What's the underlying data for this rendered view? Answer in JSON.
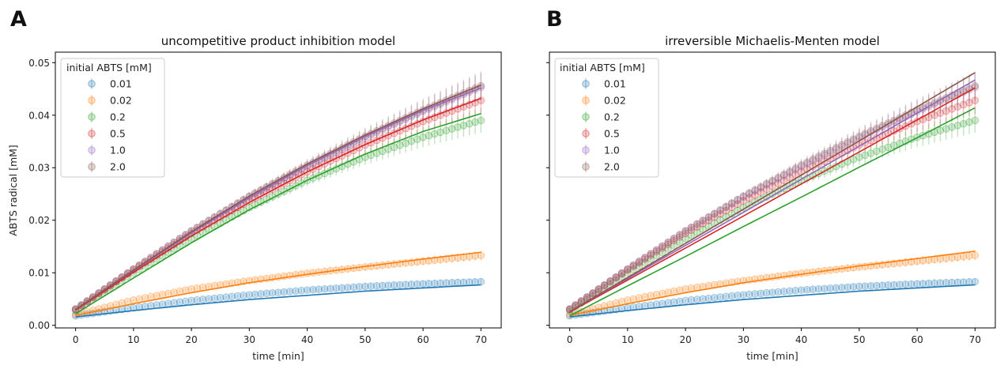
{
  "chart_data": [
    {
      "type": "scatter",
      "panel_label": "A",
      "title": "uncompetitive product inhibition model",
      "xlabel": "time [min]",
      "ylabel": "ABTS radical [mM]",
      "xlim": [
        -3.5,
        73.5
      ],
      "ylim": [
        -0.0005,
        0.052
      ],
      "xticks": [
        0,
        10,
        20,
        30,
        40,
        50,
        60,
        70
      ],
      "yticks": [
        0.0,
        0.01,
        0.02,
        0.03,
        0.04,
        0.05
      ],
      "ytick_labels": [
        "0.00",
        "0.01",
        "0.02",
        "0.03",
        "0.04",
        "0.05"
      ],
      "grid": false,
      "legend": {
        "title": "initial ABTS [mM]",
        "placement": "top-left"
      },
      "series": [
        {
          "name": "0.01",
          "color": "#1f77b4",
          "data": {
            "x": [
              0,
              10,
              20,
              30,
              40,
              50,
              60,
              70
            ],
            "y": [
              0.0018,
              0.0033,
              0.0047,
              0.0058,
              0.0067,
              0.0074,
              0.0079,
              0.0083
            ]
          },
          "fit": {
            "x": [
              0,
              10,
              20,
              30,
              40,
              50,
              60,
              70
            ],
            "y": [
              0.0016,
              0.0028,
              0.0039,
              0.0049,
              0.0057,
              0.0065,
              0.0071,
              0.0077
            ]
          }
        },
        {
          "name": "0.02",
          "color": "#ff7f0e",
          "data": {
            "x": [
              0,
              10,
              20,
              30,
              40,
              50,
              60,
              70
            ],
            "y": [
              0.002,
              0.0048,
              0.0069,
              0.0085,
              0.0099,
              0.0111,
              0.0122,
              0.0133
            ]
          },
          "fit": {
            "x": [
              0,
              10,
              20,
              30,
              40,
              50,
              60,
              70
            ],
            "y": [
              0.0019,
              0.0041,
              0.0062,
              0.0081,
              0.0097,
              0.0112,
              0.0126,
              0.0139
            ]
          }
        },
        {
          "name": "0.2",
          "color": "#2ca02c",
          "data": {
            "x": [
              0,
              10,
              20,
              30,
              40,
              50,
              60,
              70
            ],
            "y": [
              0.0028,
              0.01,
              0.0165,
              0.0224,
              0.0276,
              0.032,
              0.0358,
              0.039
            ]
          },
          "fit": {
            "x": [
              0,
              10,
              20,
              30,
              40,
              50,
              60,
              70
            ],
            "y": [
              0.0022,
              0.009,
              0.0157,
              0.022,
              0.0276,
              0.0326,
              0.0369,
              0.0403
            ]
          }
        },
        {
          "name": "0.5",
          "color": "#d62728",
          "data": {
            "x": [
              0,
              10,
              20,
              30,
              40,
              50,
              60,
              70
            ],
            "y": [
              0.003,
              0.0105,
              0.0175,
              0.0237,
              0.0292,
              0.0343,
              0.0388,
              0.0428
            ]
          },
          "fit": {
            "x": [
              0,
              10,
              20,
              30,
              40,
              50,
              60,
              70
            ],
            "y": [
              0.0029,
              0.0101,
              0.017,
              0.0234,
              0.0292,
              0.0344,
              0.0391,
              0.0432
            ]
          }
        },
        {
          "name": "1.0",
          "color": "#9467bd",
          "data": {
            "x": [
              0,
              10,
              20,
              30,
              40,
              50,
              60,
              70
            ],
            "y": [
              0.0031,
              0.0107,
              0.0179,
              0.0244,
              0.0302,
              0.0357,
              0.0407,
              0.0453
            ]
          },
          "fit": {
            "x": [
              0,
              10,
              20,
              30,
              40,
              50,
              60,
              70
            ],
            "y": [
              0.003,
              0.0104,
              0.0176,
              0.0243,
              0.0304,
              0.0359,
              0.0409,
              0.0452
            ]
          }
        },
        {
          "name": "2.0",
          "color": "#8c564b",
          "data": {
            "x": [
              0,
              10,
              20,
              30,
              40,
              50,
              60,
              70
            ],
            "y": [
              0.0031,
              0.0107,
              0.018,
              0.0246,
              0.0305,
              0.036,
              0.041,
              0.0456
            ]
          },
          "fit": {
            "x": [
              0,
              10,
              20,
              30,
              40,
              50,
              60,
              70
            ],
            "y": [
              0.003,
              0.0105,
              0.0178,
              0.0246,
              0.0307,
              0.0362,
              0.0412,
              0.0457
            ]
          }
        }
      ]
    },
    {
      "type": "scatter",
      "panel_label": "B",
      "title": "irreversible Michaelis-Menten model",
      "xlabel": "time [min]",
      "ylabel": "",
      "xlim": [
        -3.5,
        73.5
      ],
      "ylim": [
        -0.0005,
        0.052
      ],
      "xticks": [
        0,
        10,
        20,
        30,
        40,
        50,
        60,
        70
      ],
      "yticks": [
        0.0,
        0.01,
        0.02,
        0.03,
        0.04,
        0.05
      ],
      "ytick_labels": [
        "",
        "",
        "",
        "",
        "",
        ""
      ],
      "grid": false,
      "legend": {
        "title": "initial ABTS [mM]",
        "placement": "top-left"
      },
      "series": [
        {
          "name": "0.01",
          "color": "#1f77b4",
          "data": {
            "x": [
              0,
              10,
              20,
              30,
              40,
              50,
              60,
              70
            ],
            "y": [
              0.0018,
              0.0033,
              0.0047,
              0.0058,
              0.0067,
              0.0074,
              0.0079,
              0.0083
            ]
          },
          "fit": {
            "x": [
              0,
              10,
              20,
              30,
              40,
              50,
              60,
              70
            ],
            "y": [
              0.0016,
              0.0028,
              0.0039,
              0.0049,
              0.0057,
              0.0065,
              0.0071,
              0.0077
            ]
          }
        },
        {
          "name": "0.02",
          "color": "#ff7f0e",
          "data": {
            "x": [
              0,
              10,
              20,
              30,
              40,
              50,
              60,
              70
            ],
            "y": [
              0.002,
              0.0048,
              0.0069,
              0.0085,
              0.0099,
              0.0111,
              0.0122,
              0.0133
            ]
          },
          "fit": {
            "x": [
              0,
              10,
              20,
              30,
              40,
              50,
              60,
              70
            ],
            "y": [
              0.0019,
              0.0041,
              0.0062,
              0.0081,
              0.0097,
              0.0113,
              0.0127,
              0.0141
            ]
          }
        },
        {
          "name": "0.2",
          "color": "#2ca02c",
          "data": {
            "x": [
              0,
              10,
              20,
              30,
              40,
              50,
              60,
              70
            ],
            "y": [
              0.0028,
              0.01,
              0.0165,
              0.0224,
              0.0276,
              0.032,
              0.0358,
              0.039
            ]
          },
          "fit": {
            "x": [
              0,
              10,
              20,
              30,
              40,
              50,
              60,
              70
            ],
            "y": [
              0.0018,
              0.0075,
              0.0131,
              0.0188,
              0.0244,
              0.0301,
              0.0357,
              0.0414
            ]
          }
        },
        {
          "name": "0.5",
          "color": "#d62728",
          "data": {
            "x": [
              0,
              10,
              20,
              30,
              40,
              50,
              60,
              70
            ],
            "y": [
              0.003,
              0.0105,
              0.0175,
              0.0237,
              0.0292,
              0.0343,
              0.0388,
              0.0428
            ]
          },
          "fit": {
            "x": [
              0,
              10,
              20,
              30,
              40,
              50,
              60,
              70
            ],
            "y": [
              0.0025,
              0.0086,
              0.0147,
              0.0208,
              0.0269,
              0.033,
              0.0391,
              0.0452
            ]
          }
        },
        {
          "name": "1.0",
          "color": "#9467bd",
          "data": {
            "x": [
              0,
              10,
              20,
              30,
              40,
              50,
              60,
              70
            ],
            "y": [
              0.0031,
              0.0107,
              0.0179,
              0.0244,
              0.0302,
              0.0357,
              0.0407,
              0.0453
            ]
          },
          "fit": {
            "x": [
              0,
              10,
              20,
              30,
              40,
              50,
              60,
              70
            ],
            "y": [
              0.0026,
              0.0089,
              0.0152,
              0.0215,
              0.0278,
              0.0341,
              0.0404,
              0.0467
            ]
          }
        },
        {
          "name": "2.0",
          "color": "#8c564b",
          "data": {
            "x": [
              0,
              10,
              20,
              30,
              40,
              50,
              60,
              70
            ],
            "y": [
              0.0031,
              0.0107,
              0.018,
              0.0246,
              0.0305,
              0.036,
              0.041,
              0.0456
            ]
          },
          "fit": {
            "x": [
              0,
              10,
              20,
              30,
              40,
              50,
              60,
              70
            ],
            "y": [
              0.0026,
              0.0091,
              0.0156,
              0.0221,
              0.0286,
              0.0351,
              0.0416,
              0.0481
            ]
          }
        }
      ]
    }
  ]
}
